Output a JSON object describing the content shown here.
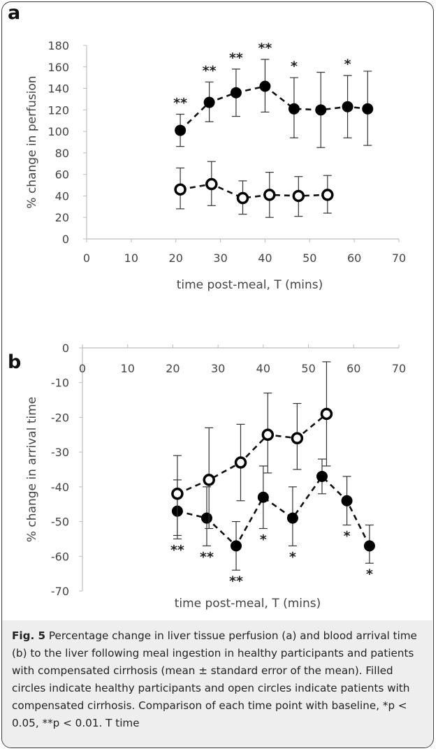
{
  "chart_data": [
    {
      "panel": "a",
      "type": "scatter",
      "xlabel": "time post-meal, T (mins)",
      "ylabel": "% change in perfusion",
      "xlim": [
        0,
        70
      ],
      "ylim": [
        0,
        180
      ],
      "x_ticks": [
        0,
        10,
        20,
        30,
        40,
        50,
        60,
        70
      ],
      "y_ticks": [
        0,
        20,
        40,
        60,
        80,
        100,
        120,
        140,
        160,
        180
      ],
      "grid": false,
      "series": [
        {
          "marker": "filled",
          "line": "dashed",
          "points": [
            {
              "x": 21,
              "y": 101,
              "lo": 86,
              "hi": 116,
              "sig": "**"
            },
            {
              "x": 27.5,
              "y": 127,
              "lo": 109,
              "hi": 146,
              "sig": "**"
            },
            {
              "x": 33.5,
              "y": 136,
              "lo": 114,
              "hi": 158,
              "sig": "**"
            },
            {
              "x": 40,
              "y": 142,
              "lo": 118,
              "hi": 167,
              "sig": "**"
            },
            {
              "x": 46.5,
              "y": 121,
              "lo": 94,
              "hi": 150,
              "sig": "*"
            },
            {
              "x": 52.5,
              "y": 120,
              "lo": 85,
              "hi": 155,
              "sig": ""
            },
            {
              "x": 58.5,
              "y": 123,
              "lo": 94,
              "hi": 152,
              "sig": "*"
            },
            {
              "x": 63,
              "y": 121,
              "lo": 87,
              "hi": 156,
              "sig": ""
            }
          ]
        },
        {
          "marker": "open",
          "line": "dashed",
          "points": [
            {
              "x": 21,
              "y": 46,
              "lo": 28,
              "hi": 66
            },
            {
              "x": 28,
              "y": 51,
              "lo": 31,
              "hi": 72
            },
            {
              "x": 35,
              "y": 38,
              "lo": 23,
              "hi": 54
            },
            {
              "x": 41,
              "y": 41,
              "lo": 20,
              "hi": 62
            },
            {
              "x": 47.5,
              "y": 40,
              "lo": 21,
              "hi": 58
            },
            {
              "x": 54,
              "y": 41,
              "lo": 24,
              "hi": 59
            }
          ]
        }
      ]
    },
    {
      "panel": "b",
      "type": "scatter",
      "xlabel": "time post-meal, T (mins)",
      "ylabel": "% change in arrival time",
      "xlim": [
        0,
        70
      ],
      "ylim": [
        -70,
        0
      ],
      "x_ticks": [
        0,
        10,
        20,
        30,
        40,
        50,
        60,
        70
      ],
      "y_ticks": [
        0,
        -10,
        -20,
        -30,
        -40,
        -50,
        -60,
        -70
      ],
      "x_axis_position": "top",
      "grid": false,
      "series": [
        {
          "marker": "filled",
          "line": "dashed",
          "points": [
            {
              "x": 21,
              "y": -47,
              "lo": -55,
              "hi": -38,
              "sig": "**"
            },
            {
              "x": 27.5,
              "y": -49,
              "lo": -57,
              "hi": -40,
              "sig": "**"
            },
            {
              "x": 34,
              "y": -57,
              "lo": -64,
              "hi": -50,
              "sig": "**"
            },
            {
              "x": 40,
              "y": -43,
              "lo": -52,
              "hi": -34,
              "sig": "*"
            },
            {
              "x": 46.5,
              "y": -49,
              "lo": -57,
              "hi": -40,
              "sig": "*"
            },
            {
              "x": 53,
              "y": -37,
              "lo": -42,
              "hi": -32,
              "sig": ""
            },
            {
              "x": 58.5,
              "y": -44,
              "lo": -51,
              "hi": -37,
              "sig": "*"
            },
            {
              "x": 63.5,
              "y": -57,
              "lo": -62,
              "hi": -51,
              "sig": "*"
            }
          ]
        },
        {
          "marker": "open",
          "line": "dashed",
          "points": [
            {
              "x": 21,
              "y": -42,
              "lo": -54,
              "hi": -31
            },
            {
              "x": 28,
              "y": -38,
              "lo": -52,
              "hi": -23
            },
            {
              "x": 35,
              "y": -33,
              "lo": -44,
              "hi": -22
            },
            {
              "x": 41,
              "y": -25,
              "lo": -36,
              "hi": -13
            },
            {
              "x": 47.5,
              "y": -26,
              "lo": -35,
              "hi": -16
            },
            {
              "x": 54,
              "y": -19,
              "lo": -34,
              "hi": -4
            }
          ]
        }
      ]
    }
  ],
  "caption": {
    "label": "Fig. 5",
    "text": " Percentage change in liver tissue perfusion (a) and blood arrival time (b) to the liver following meal ingestion in healthy participants and patients with compensated cirrhosis (mean ± standard error of the mean). Filled circles indicate healthy participants and open circles indicate patients with compensated cirrhosis. Comparison of each time point with baseline, *p < 0.05, **p < 0.01. T time"
  }
}
